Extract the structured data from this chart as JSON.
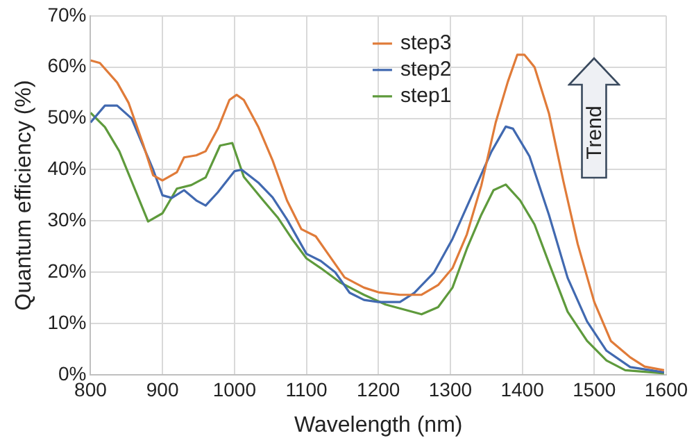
{
  "chart_data": {
    "type": "line",
    "xlabel": "Wavelength (nm)",
    "ylabel": "Quantum efficiency (%)",
    "xlim": [
      800,
      1600
    ],
    "xticks": [
      800,
      900,
      1000,
      1100,
      1200,
      1300,
      1400,
      1500,
      1600
    ],
    "ylim": [
      0,
      70
    ],
    "yticks": [
      {
        "value": 0,
        "label": "0%"
      },
      {
        "value": 10,
        "label": "10%"
      },
      {
        "value": 20,
        "label": "20%"
      },
      {
        "value": 30,
        "label": "30%"
      },
      {
        "value": 40,
        "label": "40%"
      },
      {
        "value": 50,
        "label": "50%"
      },
      {
        "value": 60,
        "label": "60%"
      },
      {
        "value": 70,
        "label": "70%"
      }
    ],
    "grid": true,
    "legend": "top",
    "marker": "none",
    "line_style": "solid",
    "annotations": [
      "Trend"
    ],
    "series": [
      {
        "name": "step3",
        "color": "#e07b39",
        "x": [
          800,
          813,
          837,
          853,
          873,
          887,
          900,
          920,
          930,
          947,
          960,
          977,
          993,
          1003,
          1013,
          1033,
          1053,
          1073,
          1093,
          1113,
          1133,
          1153,
          1180,
          1200,
          1230,
          1260,
          1283,
          1303,
          1323,
          1343,
          1363,
          1380,
          1393,
          1403,
          1417,
          1437,
          1457,
          1477,
          1500,
          1523,
          1550,
          1570,
          1597
        ],
        "values": [
          61.3,
          60.8,
          57,
          53,
          45,
          38.9,
          37.9,
          39.5,
          42.4,
          42.8,
          43.6,
          48,
          53.6,
          54.6,
          53.6,
          48.4,
          41.8,
          34,
          28.4,
          27,
          23,
          19,
          17,
          16.1,
          15.6,
          15.6,
          17.5,
          20.8,
          27.4,
          36.9,
          49.2,
          57.2,
          62.4,
          62.4,
          60,
          51,
          37.8,
          25.5,
          14.2,
          6.6,
          3.4,
          1.6,
          0.9
        ]
      },
      {
        "name": "step2",
        "color": "#4169b0",
        "x": [
          800,
          820,
          837,
          857,
          887,
          900,
          913,
          930,
          947,
          960,
          977,
          1000,
          1010,
          1033,
          1053,
          1073,
          1100,
          1120,
          1140,
          1160,
          1180,
          1200,
          1230,
          1250,
          1277,
          1303,
          1330,
          1357,
          1377,
          1387,
          1410,
          1437,
          1463,
          1490,
          1517,
          1550,
          1597
        ],
        "values": [
          49.2,
          52.5,
          52.5,
          50,
          40,
          35,
          34.5,
          36,
          34,
          33,
          35.6,
          39.7,
          40,
          37.5,
          34.6,
          30.3,
          23.6,
          22.2,
          20,
          16,
          14.6,
          14.2,
          14.2,
          16,
          19.9,
          26.5,
          35,
          43.5,
          48.4,
          48,
          42.6,
          31.2,
          18.9,
          10.4,
          4.7,
          1.5,
          0.5
        ]
      },
      {
        "name": "step1",
        "color": "#5e9a3c",
        "x": [
          800,
          820,
          840,
          880,
          900,
          920,
          940,
          960,
          980,
          997,
          1013,
          1040,
          1060,
          1080,
          1100,
          1120,
          1147,
          1180,
          1210,
          1260,
          1283,
          1303,
          1323,
          1343,
          1360,
          1377,
          1397,
          1417,
          1437,
          1463,
          1490,
          1517,
          1543,
          1597
        ],
        "values": [
          51.1,
          48.3,
          43.6,
          29.9,
          31.5,
          36.3,
          37,
          38.5,
          44.7,
          45.2,
          38.6,
          34,
          30.7,
          26.5,
          22.7,
          20.8,
          18,
          15.6,
          13.7,
          11.8,
          13.2,
          17,
          24.6,
          31.2,
          36,
          37.1,
          34,
          29.3,
          21.8,
          12.3,
          6.6,
          2.8,
          0.9,
          0.3
        ]
      }
    ]
  }
}
